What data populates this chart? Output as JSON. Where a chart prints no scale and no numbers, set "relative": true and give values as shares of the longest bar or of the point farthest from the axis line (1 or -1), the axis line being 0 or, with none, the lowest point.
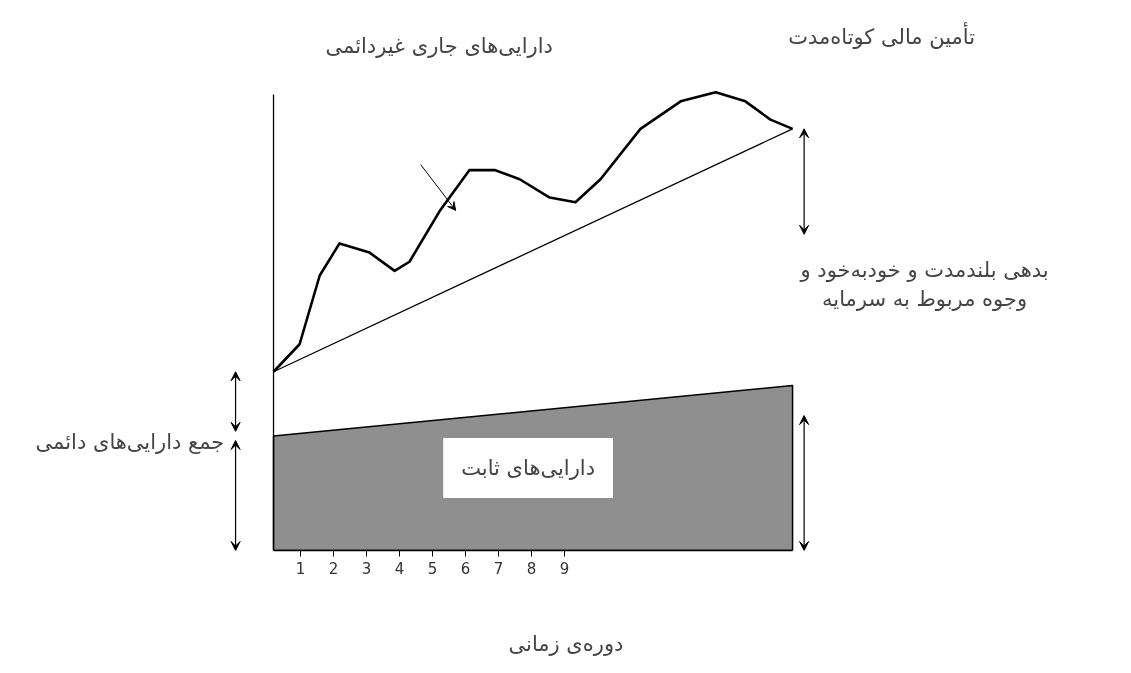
{
  "chart_data": {
    "type": "line",
    "relative": true,
    "title": "دارایی‌های جاری غیردائمی",
    "xlabel": "دوره‌ی زمانی",
    "xlim": [
      0.18,
      15.91
    ],
    "xticks": [
      1,
      2,
      3,
      4,
      5,
      6,
      7,
      8,
      9
    ],
    "ref_lines": [
      {
        "axis": "x",
        "value": 0.18,
        "color": "#000000"
      }
    ],
    "series": [
      {
        "type": "area",
        "color": "#8f8f8f",
        "x": [
          0.18,
          15.91
        ],
        "values": [
          0.25,
          0.36
        ]
      },
      {
        "color": "#000000",
        "x": [
          0.18,
          15.91
        ],
        "values": [
          0.39,
          0.92
        ]
      },
      {
        "color": "#000000",
        "x": [
          0.18,
          0.97,
          1.58,
          2.18,
          3.09,
          3.85,
          4.3,
          5.21,
          6.12,
          6.88,
          7.64,
          8.55,
          9.33,
          10.09,
          11.3,
          12.52,
          13.58,
          14.48,
          15.24,
          15.91
        ],
        "values": [
          0.39,
          0.45,
          0.6,
          0.67,
          0.65,
          0.61,
          0.63,
          0.74,
          0.83,
          0.83,
          0.81,
          0.77,
          0.76,
          0.81,
          0.92,
          0.98,
          1.0,
          0.98,
          0.94,
          0.92
        ]
      }
    ],
    "annotations": [
      "تأمین مالی کوتاه‌مدت",
      "بدهی بلندمدت و خودبه‌خود و\nوجوه مربوط به سرمایه",
      "جمع دارایی‌های دائمی",
      "دارایی‌های ثابت"
    ]
  }
}
